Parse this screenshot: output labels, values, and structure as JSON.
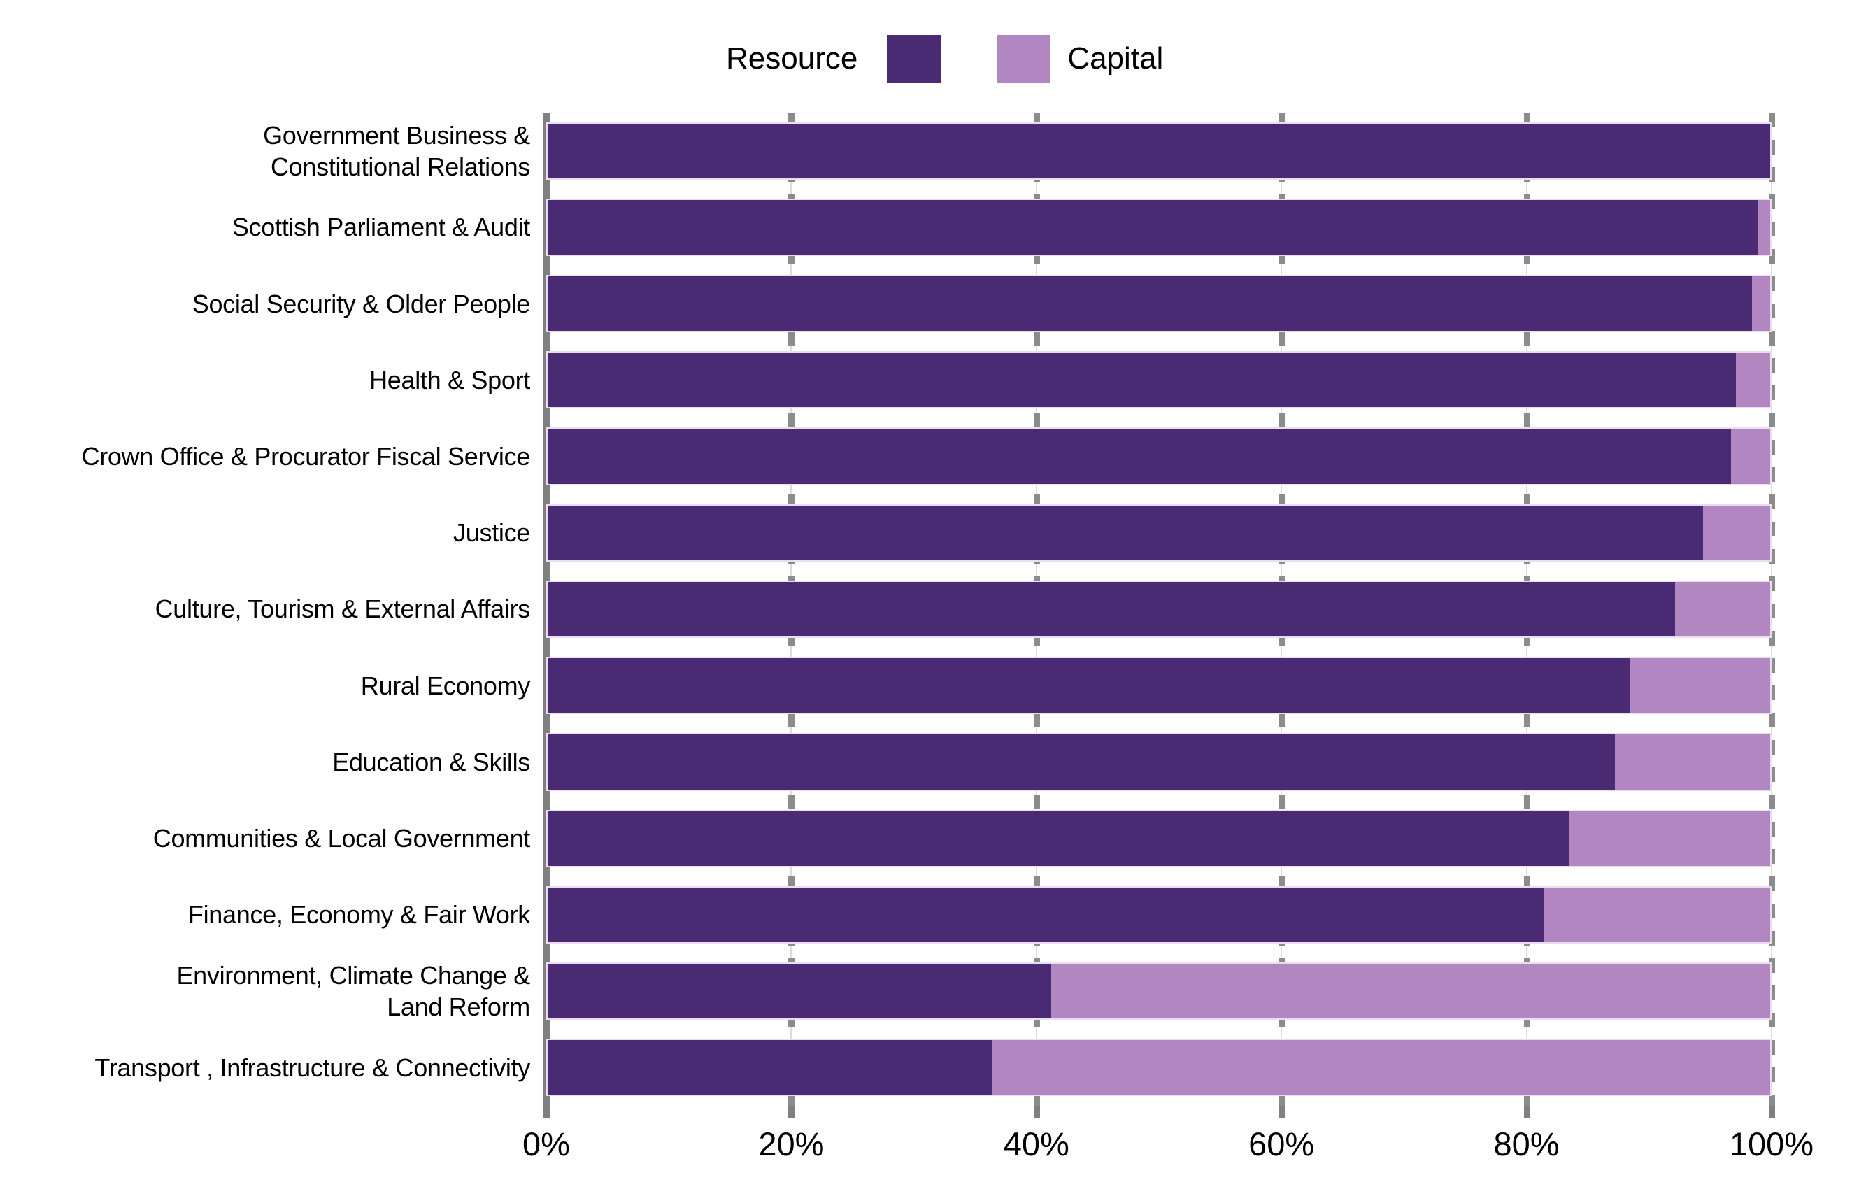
{
  "legend": {
    "resource_label": "Resource",
    "capital_label": "Capital"
  },
  "colors": {
    "resource": "#4B2A74",
    "capital": "#B287C1",
    "axis": "#808080",
    "gridline_dash": "#8C8C8C",
    "gridline_thin": "#DCDCDC",
    "text": "#000000",
    "background": "#FFFFFF"
  },
  "chart_data": {
    "type": "bar",
    "orientation": "horizontal-stacked",
    "title": "",
    "categories": [
      "Government Business &\nConstitutional Relations",
      "Scottish Parliament & Audit",
      "Social Security & Older People",
      "Health & Sport",
      "Crown Office & Procurator Fiscal Service",
      "Justice",
      "Culture, Tourism & External Affairs",
      "Rural Economy",
      "Education & Skills",
      "Communities & Local Government",
      "Finance, Economy & Fair Work",
      "Environment, Climate Change &\nLand Reform",
      "Transport , Infrastructure & Connectivity"
    ],
    "series": [
      {
        "name": "Resource",
        "color": "#4B2A74",
        "values": [
          100,
          99,
          98.5,
          97.2,
          96.8,
          94.5,
          92.2,
          88.5,
          87.3,
          83.6,
          81.5,
          41.2,
          36.3
        ]
      },
      {
        "name": "Capital",
        "color": "#B287C1",
        "values": [
          0,
          1,
          1.5,
          2.8,
          3.2,
          5.5,
          7.8,
          11.5,
          12.7,
          16.4,
          18.5,
          58.8,
          63.7
        ]
      }
    ],
    "x_axis": {
      "min": 0,
      "max": 100,
      "unit": "%",
      "ticks": [
        "0%",
        "20%",
        "40%",
        "60%",
        "80%",
        "100%"
      ],
      "gridlines": true,
      "gridline_style": "dashed"
    },
    "legend_position": "top"
  }
}
